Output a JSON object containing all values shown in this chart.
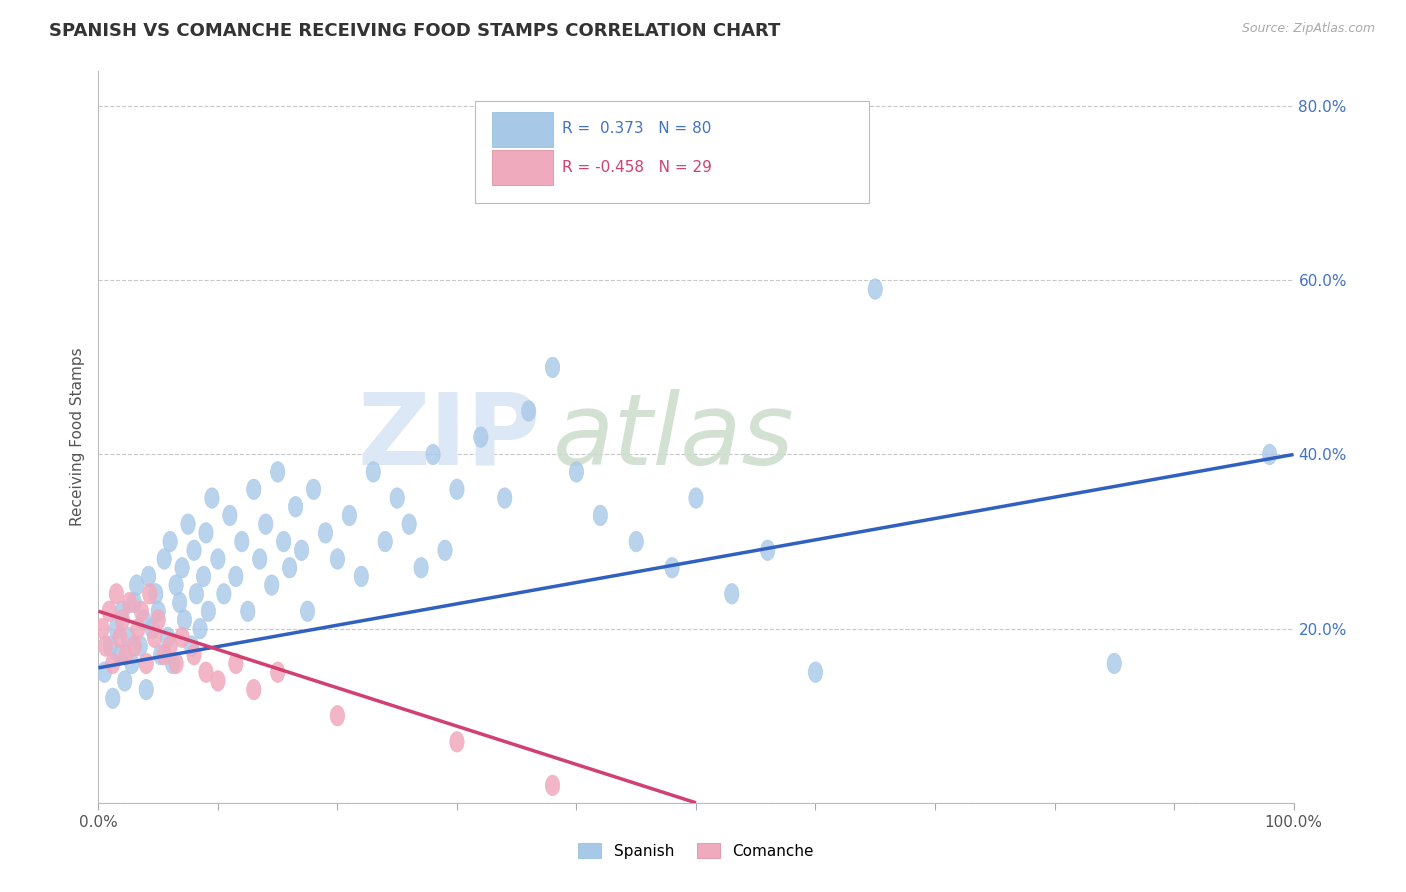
{
  "title": "SPANISH VS COMANCHE RECEIVING FOOD STAMPS CORRELATION CHART",
  "source": "Source: ZipAtlas.com",
  "ylabel": "Receiving Food Stamps",
  "xlim": [
    0.0,
    1.0
  ],
  "ylim": [
    0.0,
    0.84
  ],
  "legend_r1": "R =  0.373",
  "legend_n1": "N = 80",
  "legend_r2": "R = -0.458",
  "legend_n2": "N = 29",
  "blue_color": "#A8C8E8",
  "pink_color": "#F0AABE",
  "blue_line_color": "#3060C0",
  "pink_line_color": "#D04070",
  "background_color": "#FFFFFF",
  "grid_color": "#C8C8C8",
  "spanish_x": [
    0.005,
    0.01,
    0.012,
    0.015,
    0.018,
    0.02,
    0.022,
    0.025,
    0.028,
    0.03,
    0.032,
    0.035,
    0.038,
    0.04,
    0.042,
    0.045,
    0.048,
    0.05,
    0.052,
    0.055,
    0.058,
    0.06,
    0.062,
    0.065,
    0.068,
    0.07,
    0.072,
    0.075,
    0.078,
    0.08,
    0.082,
    0.085,
    0.088,
    0.09,
    0.092,
    0.095,
    0.1,
    0.105,
    0.11,
    0.115,
    0.12,
    0.125,
    0.13,
    0.135,
    0.14,
    0.145,
    0.15,
    0.155,
    0.16,
    0.165,
    0.17,
    0.175,
    0.18,
    0.19,
    0.2,
    0.21,
    0.22,
    0.23,
    0.24,
    0.25,
    0.26,
    0.27,
    0.28,
    0.29,
    0.3,
    0.32,
    0.34,
    0.36,
    0.38,
    0.4,
    0.42,
    0.45,
    0.48,
    0.5,
    0.53,
    0.56,
    0.6,
    0.65,
    0.85,
    0.98
  ],
  "spanish_y": [
    0.15,
    0.18,
    0.12,
    0.2,
    0.17,
    0.22,
    0.14,
    0.19,
    0.16,
    0.23,
    0.25,
    0.18,
    0.21,
    0.13,
    0.26,
    0.2,
    0.24,
    0.22,
    0.17,
    0.28,
    0.19,
    0.3,
    0.16,
    0.25,
    0.23,
    0.27,
    0.21,
    0.32,
    0.18,
    0.29,
    0.24,
    0.2,
    0.26,
    0.31,
    0.22,
    0.35,
    0.28,
    0.24,
    0.33,
    0.26,
    0.3,
    0.22,
    0.36,
    0.28,
    0.32,
    0.25,
    0.38,
    0.3,
    0.27,
    0.34,
    0.29,
    0.22,
    0.36,
    0.31,
    0.28,
    0.33,
    0.26,
    0.38,
    0.3,
    0.35,
    0.32,
    0.27,
    0.4,
    0.29,
    0.36,
    0.42,
    0.35,
    0.45,
    0.5,
    0.38,
    0.33,
    0.3,
    0.27,
    0.35,
    0.24,
    0.29,
    0.15,
    0.59,
    0.16,
    0.4
  ],
  "comanche_x": [
    0.003,
    0.006,
    0.009,
    0.012,
    0.015,
    0.018,
    0.02,
    0.023,
    0.026,
    0.03,
    0.033,
    0.036,
    0.04,
    0.043,
    0.047,
    0.05,
    0.055,
    0.06,
    0.065,
    0.07,
    0.08,
    0.09,
    0.1,
    0.115,
    0.13,
    0.15,
    0.2,
    0.3,
    0.38
  ],
  "comanche_y": [
    0.2,
    0.18,
    0.22,
    0.16,
    0.24,
    0.19,
    0.21,
    0.17,
    0.23,
    0.18,
    0.2,
    0.22,
    0.16,
    0.24,
    0.19,
    0.21,
    0.17,
    0.18,
    0.16,
    0.19,
    0.17,
    0.15,
    0.14,
    0.16,
    0.13,
    0.15,
    0.1,
    0.07,
    0.02
  ],
  "blue_trend_x": [
    0.0,
    1.0
  ],
  "blue_trend_y": [
    0.155,
    0.4
  ],
  "pink_trend_x": [
    0.0,
    0.5
  ],
  "pink_trend_y": [
    0.22,
    0.0
  ]
}
